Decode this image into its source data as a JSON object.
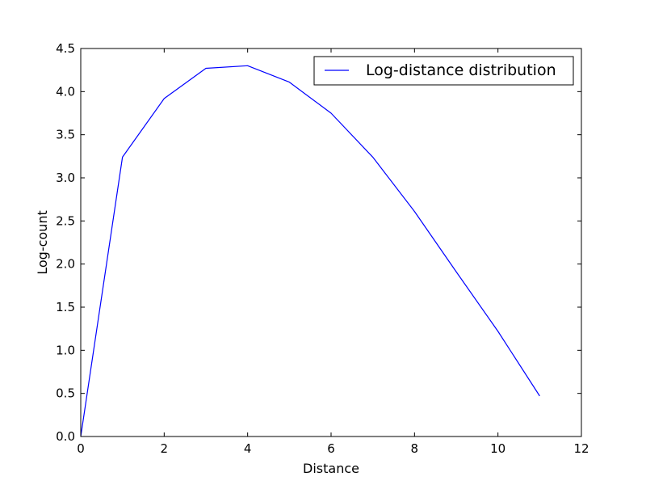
{
  "chart_data": {
    "type": "line",
    "title": "",
    "xlabel": "Distance",
    "ylabel": "Log-count",
    "xlim": [
      0,
      12
    ],
    "ylim": [
      0,
      4.5
    ],
    "x_ticks": [
      0,
      2,
      4,
      6,
      8,
      10,
      12
    ],
    "x_tick_labels": [
      "0",
      "2",
      "4",
      "6",
      "8",
      "10",
      "12"
    ],
    "y_ticks": [
      0,
      0.5,
      1.0,
      1.5,
      2.0,
      2.5,
      3.0,
      3.5,
      4.0,
      4.5
    ],
    "y_tick_labels": [
      "0.0",
      "0.5",
      "1.0",
      "1.5",
      "2.0",
      "2.5",
      "3.0",
      "3.5",
      "4.0",
      "4.5"
    ],
    "grid": false,
    "legend_position": "top-right",
    "series": [
      {
        "name": "Log-distance distribution",
        "color": "#0000ff",
        "x": [
          0,
          1,
          2,
          3,
          4,
          5,
          6,
          7,
          8,
          9,
          10,
          11
        ],
        "y": [
          0.0,
          3.24,
          3.92,
          4.27,
          4.3,
          4.11,
          3.75,
          3.24,
          2.61,
          1.91,
          1.22,
          0.47
        ]
      }
    ]
  }
}
